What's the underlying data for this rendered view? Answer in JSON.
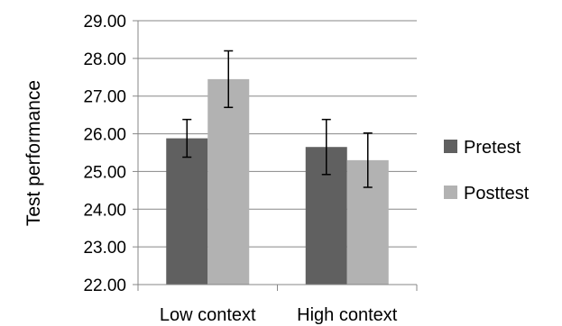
{
  "chart_data": {
    "type": "bar",
    "title": "",
    "xlabel": "",
    "ylabel": "Test performance",
    "ylim": [
      22,
      29
    ],
    "yticks": [
      "22.00",
      "23.00",
      "24.00",
      "25.00",
      "26.00",
      "27.00",
      "28.00",
      "29.00"
    ],
    "categories": [
      "Low context",
      "High context"
    ],
    "grid": "horizontal",
    "legend_position": "right",
    "series": [
      {
        "name": "Pretest",
        "color": "#606060",
        "values": [
          25.88,
          25.65
        ],
        "error_low": [
          25.38,
          24.92
        ],
        "error_high": [
          26.38,
          26.38
        ]
      },
      {
        "name": "Posttest",
        "color": "#b2b2b2",
        "values": [
          27.45,
          25.3
        ],
        "error_low": [
          26.7,
          24.58
        ],
        "error_high": [
          28.2,
          26.02
        ]
      }
    ]
  }
}
